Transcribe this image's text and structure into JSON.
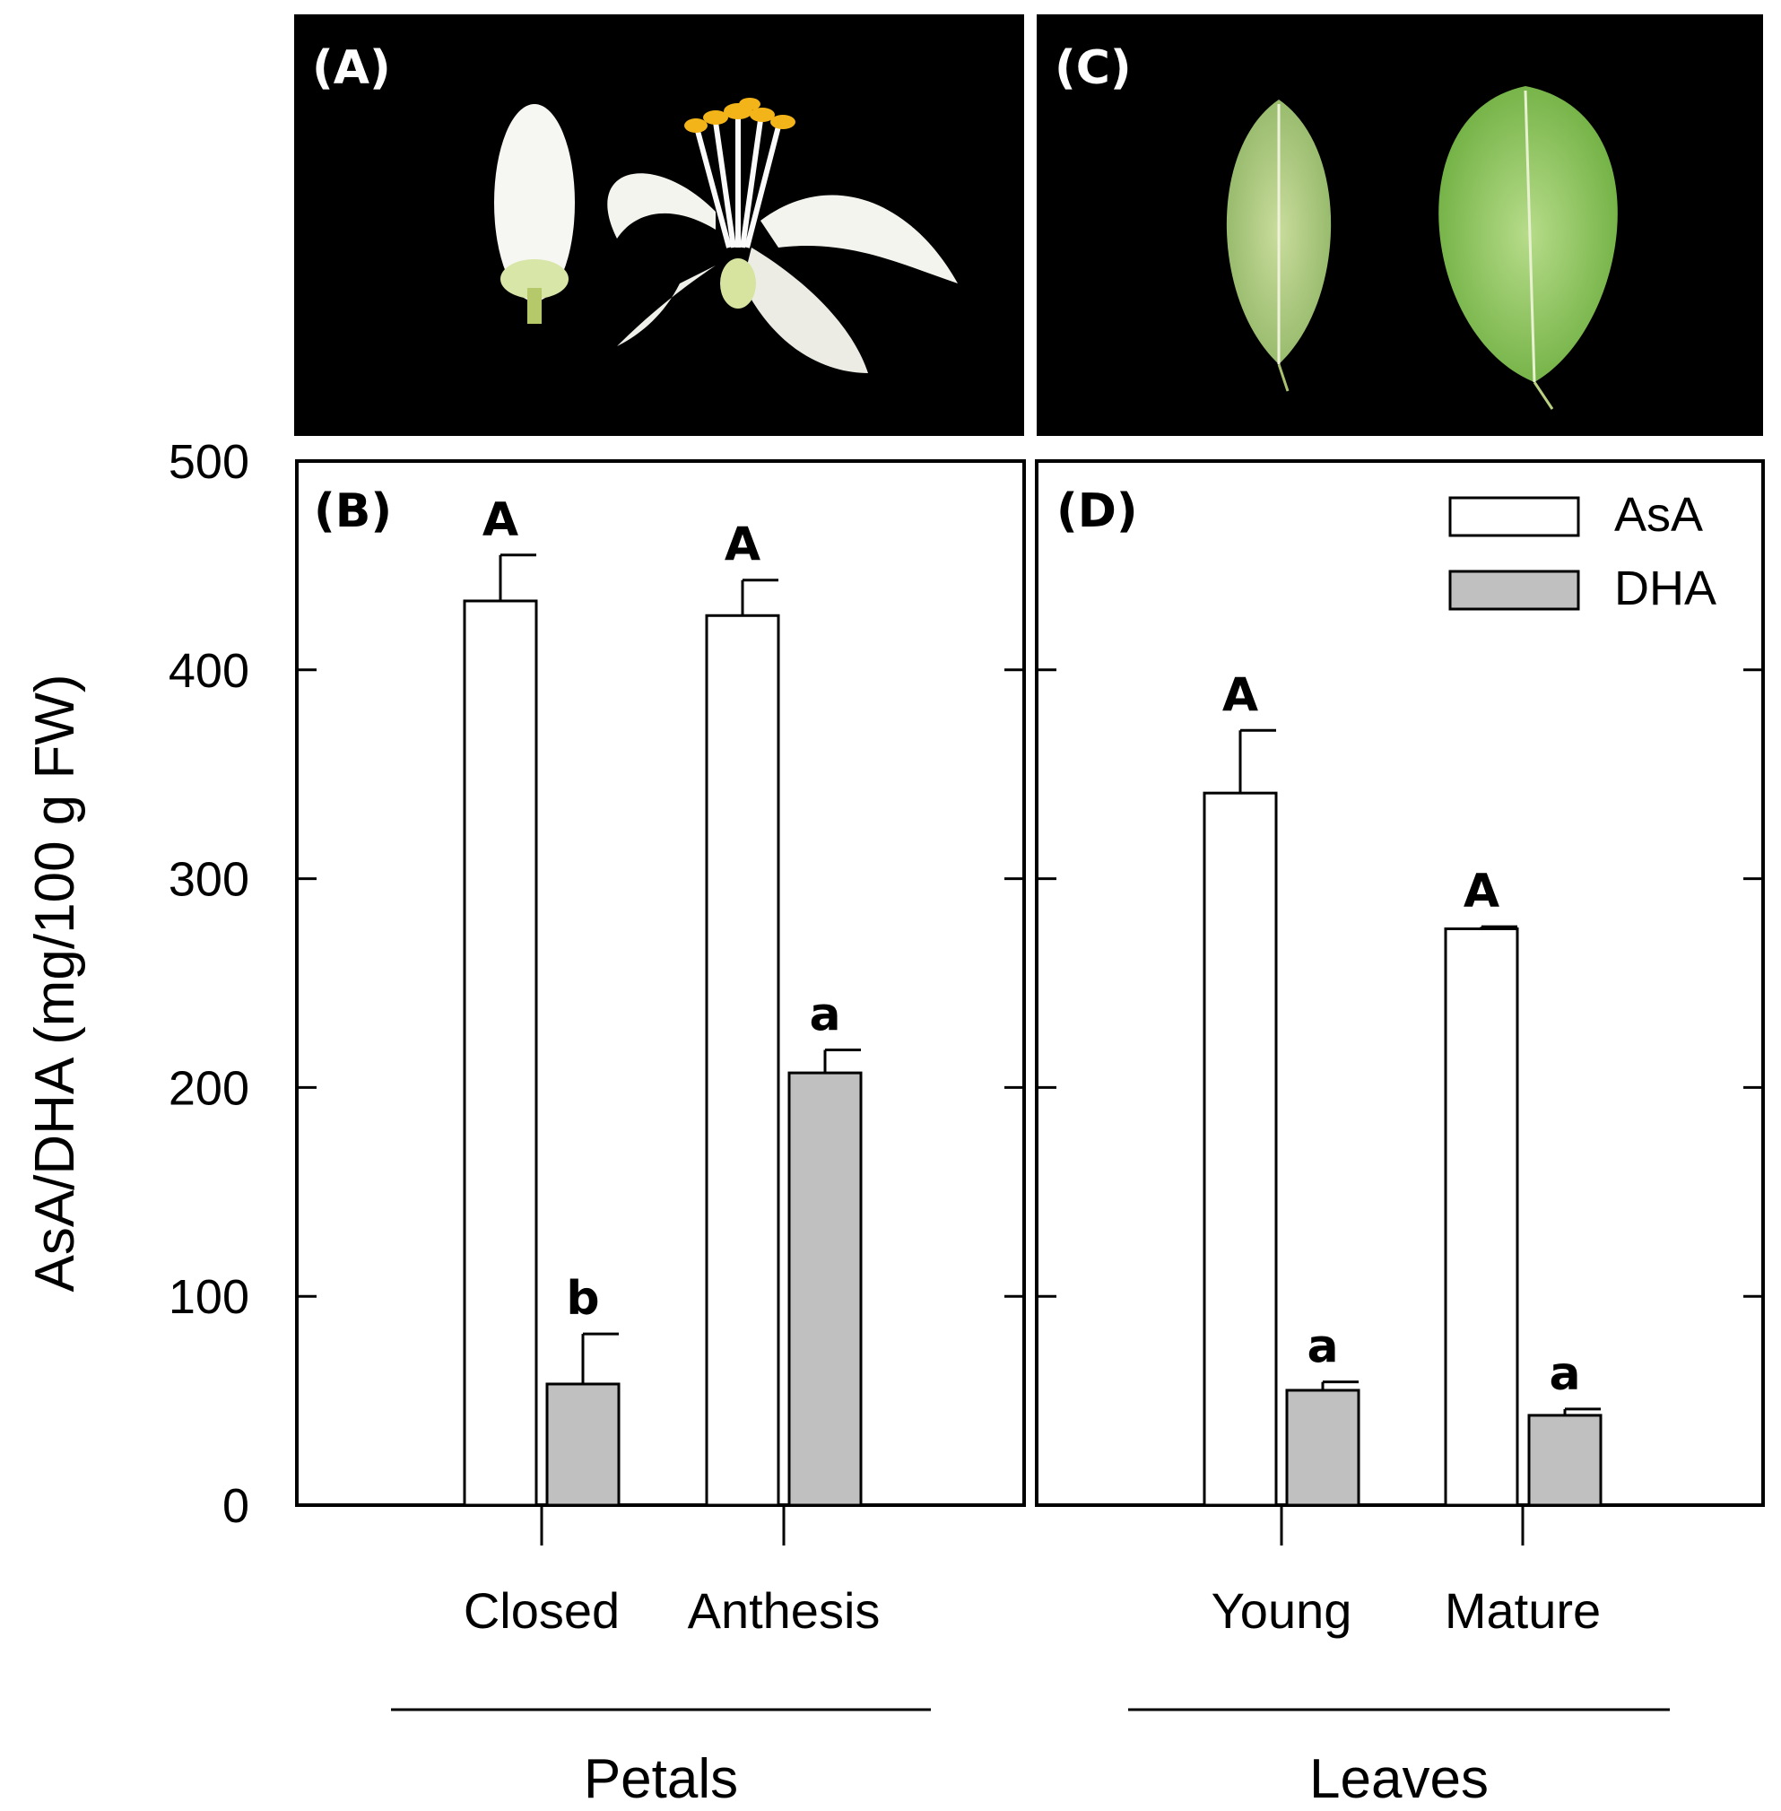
{
  "panels": {
    "a_label": "(A)",
    "b_label": "(B)",
    "c_label": "(C)",
    "d_label": "(D)"
  },
  "chart_data": {
    "type": "bar",
    "ylabel": "AsA/DHA (mg/100 g FW)",
    "ylim": [
      0,
      500
    ],
    "yticks": [
      0,
      100,
      200,
      300,
      400,
      500
    ],
    "legend": {
      "placement": "top-right",
      "entries": [
        "AsA",
        "DHA"
      ]
    },
    "series": [
      {
        "name": "AsA",
        "color": "#ffffff"
      },
      {
        "name": "DHA",
        "color": "#c0c0c0"
      }
    ],
    "subplots": [
      {
        "panel": "(B)",
        "group_label": "Petals",
        "categories": [
          "Closed",
          "Anthesis"
        ],
        "AsA": {
          "values": [
            433,
            426
          ],
          "errors": [
            22,
            17
          ],
          "letters": [
            "A",
            "A"
          ]
        },
        "DHA": {
          "values": [
            58,
            207
          ],
          "errors": [
            24,
            11
          ],
          "letters": [
            "b",
            "a"
          ]
        }
      },
      {
        "panel": "(D)",
        "group_label": "Leaves",
        "categories": [
          "Young",
          "Mature"
        ],
        "AsA": {
          "values": [
            341,
            276
          ],
          "errors": [
            30,
            1
          ],
          "letters": [
            "A",
            "A"
          ]
        },
        "DHA": {
          "values": [
            55,
            43
          ],
          "errors": [
            4,
            3
          ],
          "letters": [
            "a",
            "a"
          ]
        }
      }
    ]
  }
}
